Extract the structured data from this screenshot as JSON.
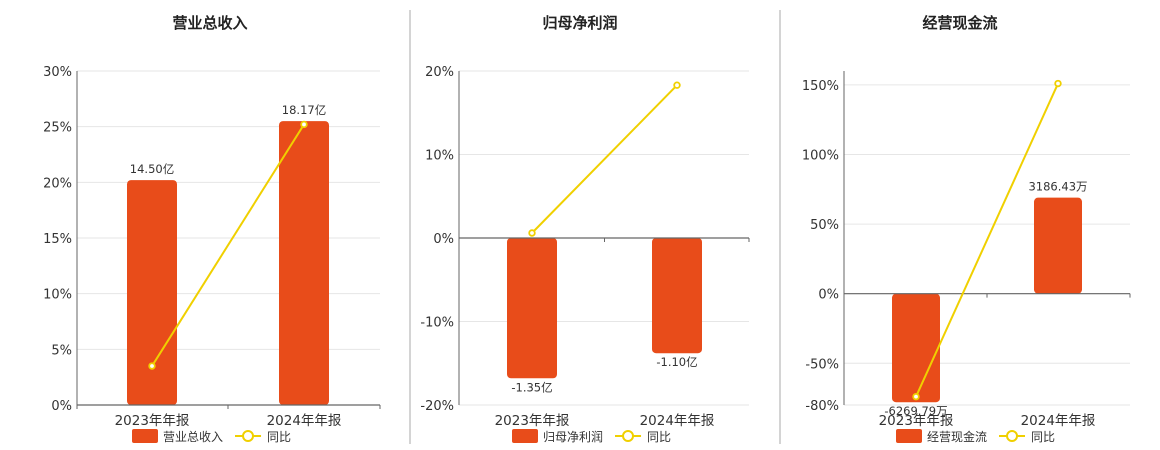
{
  "colors": {
    "bar": "#e84c1a",
    "line": "#f0d000",
    "grid": "#e6e6e6",
    "axis": "#666666",
    "divider": "#aaaaaa"
  },
  "chart_data": [
    {
      "type": "bar",
      "title": "营业总收入",
      "categories": [
        "2023年年报",
        "2024年年报"
      ],
      "bar_series": {
        "name": "营业总收入",
        "values": [
          20.2,
          25.5
        ],
        "labels": [
          "14.50亿",
          "18.17亿"
        ]
      },
      "line_series": {
        "name": "同比",
        "values": [
          3.5,
          25.2
        ]
      },
      "ylim": [
        0,
        30
      ],
      "yticks": [
        0,
        5,
        10,
        15,
        20,
        25,
        30
      ],
      "ytick_labels": [
        "0%",
        "5%",
        "10%",
        "15%",
        "20%",
        "25%",
        "30%"
      ],
      "grid": true,
      "legend_position": "bottom"
    },
    {
      "type": "bar",
      "title": "归母净利润",
      "categories": [
        "2023年年报",
        "2024年年报"
      ],
      "bar_series": {
        "name": "归母净利润",
        "values": [
          -16.8,
          -13.8
        ],
        "labels": [
          "-1.35亿",
          "-1.10亿"
        ]
      },
      "line_series": {
        "name": "同比",
        "values": [
          0.6,
          18.3
        ]
      },
      "ylim": [
        -20,
        20
      ],
      "yticks": [
        -20,
        -10,
        0,
        10,
        20
      ],
      "ytick_labels": [
        "-20%",
        "-10%",
        "0%",
        "10%",
        "20%"
      ],
      "grid": true,
      "legend_position": "bottom"
    },
    {
      "type": "bar",
      "title": "经营现金流",
      "categories": [
        "2023年年报",
        "2024年年报"
      ],
      "bar_series": {
        "name": "经营现金流",
        "values": [
          -78,
          69
        ],
        "labels": [
          "-6269.79万",
          "3186.43万"
        ]
      },
      "line_series": {
        "name": "同比",
        "values": [
          -74,
          151
        ]
      },
      "ylim": [
        -80,
        160
      ],
      "yticks": [
        -80,
        -50,
        0,
        50,
        100,
        150
      ],
      "ytick_labels": [
        "-80%",
        "-50%",
        "0%",
        "50%",
        "100%",
        "150%"
      ],
      "grid": true,
      "legend_position": "bottom"
    }
  ]
}
